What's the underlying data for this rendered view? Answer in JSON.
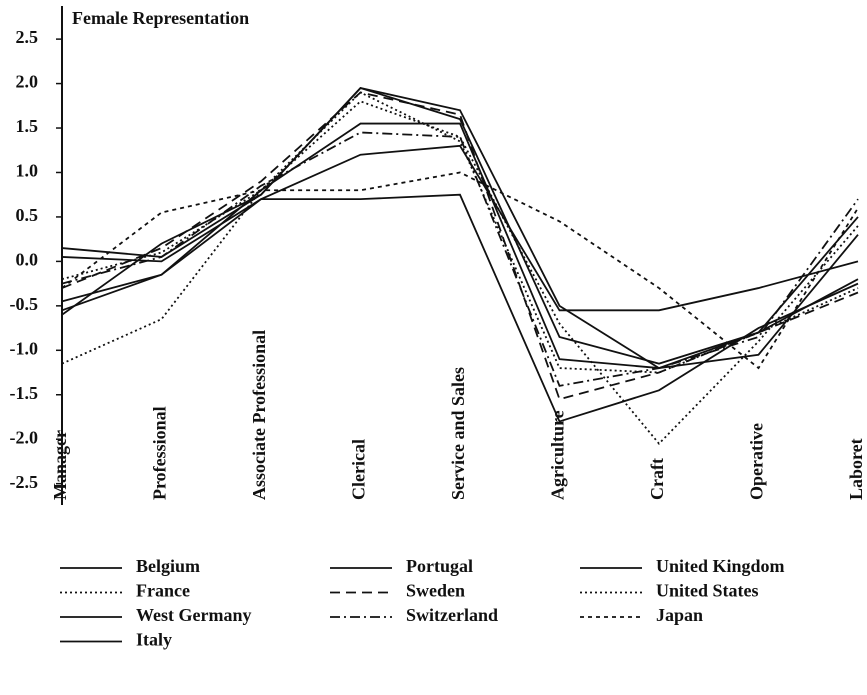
{
  "chart_data": {
    "type": "line",
    "title": "Female Representation",
    "categories": [
      "Manager",
      "Professional",
      "Associate Professional",
      "Clerical",
      "Service and Sales",
      "Agriculture",
      "Craft",
      "Operative",
      "Laboret"
    ],
    "ylim": [
      -2.65,
      2.85
    ],
    "yticks": [
      2.5,
      {
        "value": 2,
        "label": "2.0"
      },
      1.5,
      {
        "value": 1,
        "label": "1.0"
      },
      0.5,
      {
        "value": 0,
        "label": "0.0"
      },
      -0.5,
      {
        "value": -1,
        "label": "-1.0"
      },
      -1.5,
      {
        "value": -2,
        "label": "-2.0"
      },
      -2.5
    ],
    "series": [
      {
        "name": "Belgium",
        "color": "#111",
        "dash": "solid",
        "values": [
          0.15,
          0.05,
          0.75,
          1.95,
          1.7,
          -0.5,
          -1.2,
          -0.8,
          0.5
        ]
      },
      {
        "name": "France",
        "color": "#111",
        "dash": "dotted",
        "values": [
          -0.2,
          0.1,
          0.8,
          1.8,
          1.4,
          -0.7,
          -2.05,
          -0.9,
          0.4
        ]
      },
      {
        "name": "West Germany",
        "color": "#111",
        "dash": "solid",
        "values": [
          -0.45,
          -0.15,
          0.8,
          1.55,
          1.55,
          -1.1,
          -1.2,
          -1.05,
          0.3
        ]
      },
      {
        "name": "Italy",
        "color": "#111",
        "dash": "solid",
        "values": [
          -0.55,
          -0.15,
          0.7,
          1.2,
          1.3,
          -0.55,
          -0.55,
          -0.3,
          0.0
        ]
      },
      {
        "name": "Portugal",
        "color": "#111",
        "dash": "solid",
        "values": [
          0.05,
          0.0,
          0.7,
          0.7,
          0.75,
          -1.8,
          -1.45,
          -0.75,
          -0.25
        ]
      },
      {
        "name": "Sweden",
        "color": "#111",
        "dash": "dashed",
        "values": [
          -0.3,
          0.15,
          0.9,
          1.9,
          1.65,
          -1.55,
          -1.25,
          -0.8,
          -0.35
        ]
      },
      {
        "name": "Switzerland",
        "color": "#111",
        "dash": "dashdot",
        "values": [
          -0.25,
          0.05,
          0.85,
          1.45,
          1.4,
          -1.4,
          -1.2,
          -0.85,
          0.7
        ]
      },
      {
        "name": "United Kingdom",
        "color": "#111",
        "dash": "solid",
        "values": [
          -0.6,
          0.2,
          0.75,
          1.95,
          1.6,
          -0.85,
          -1.15,
          -0.8,
          -0.2
        ]
      },
      {
        "name": "United States",
        "color": "#111",
        "dash": "dotted",
        "values": [
          -1.15,
          -0.65,
          0.8,
          1.9,
          1.35,
          -1.2,
          -1.25,
          -0.8,
          -0.3
        ]
      },
      {
        "name": "Japan",
        "color": "#111",
        "dash": "shortdash",
        "values": [
          -0.3,
          0.55,
          0.8,
          0.8,
          1.0,
          0.45,
          -0.3,
          -1.2,
          0.6
        ]
      }
    ]
  }
}
